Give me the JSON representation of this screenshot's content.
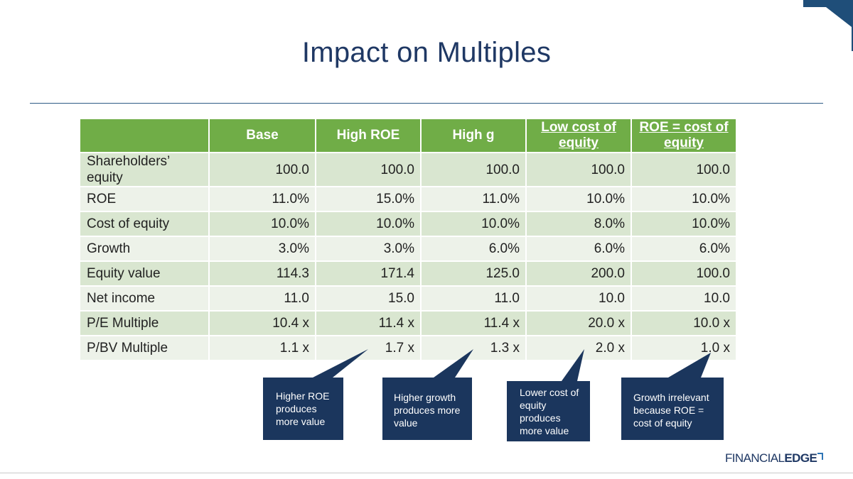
{
  "slide": {
    "title": "Impact on Multiples",
    "brand": {
      "part1": "FINANCIAL",
      "part2": "EDGE"
    }
  },
  "colors": {
    "header_green": "#70ad47",
    "row_dark": "#d9e6d0",
    "row_light": "#edf2e9",
    "callout_navy": "#1b365d",
    "title_navy": "#1f3864"
  },
  "table": {
    "headers": [
      "",
      "Base",
      "High ROE",
      "High g",
      "Low cost of equity",
      "ROE = cost of equity"
    ],
    "rows": [
      {
        "label": "Shareholders’ equity",
        "values": [
          "100.0",
          "100.0",
          "100.0",
          "100.0",
          "100.0"
        ]
      },
      {
        "label": "ROE",
        "values": [
          "11.0%",
          "15.0%",
          "11.0%",
          "10.0%",
          "10.0%"
        ]
      },
      {
        "label": "Cost of equity",
        "values": [
          "10.0%",
          "10.0%",
          "10.0%",
          "8.0%",
          "10.0%"
        ]
      },
      {
        "label": "Growth",
        "values": [
          "3.0%",
          "3.0%",
          "6.0%",
          "6.0%",
          "6.0%"
        ]
      },
      {
        "label": "Equity value",
        "values": [
          "114.3",
          "171.4",
          "125.0",
          "200.0",
          "100.0"
        ]
      },
      {
        "label": "Net income",
        "values": [
          "11.0",
          "15.0",
          "11.0",
          "10.0",
          "10.0"
        ]
      },
      {
        "label": "P/E Multiple",
        "values": [
          "10.4 x",
          "11.4 x",
          "11.4 x",
          "20.0 x",
          "10.0 x"
        ]
      },
      {
        "label": "P/BV Multiple",
        "values": [
          "1.1 x",
          "1.7 x",
          "1.3 x",
          "2.0 x",
          "1.0 x"
        ]
      }
    ]
  },
  "callouts": [
    {
      "text": "Higher ROE produces more value"
    },
    {
      "text": "Higher growth produces more value"
    },
    {
      "text": "Lower cost of equity produces more value"
    },
    {
      "text": "Growth irrelevant because ROE = cost of equity"
    }
  ]
}
